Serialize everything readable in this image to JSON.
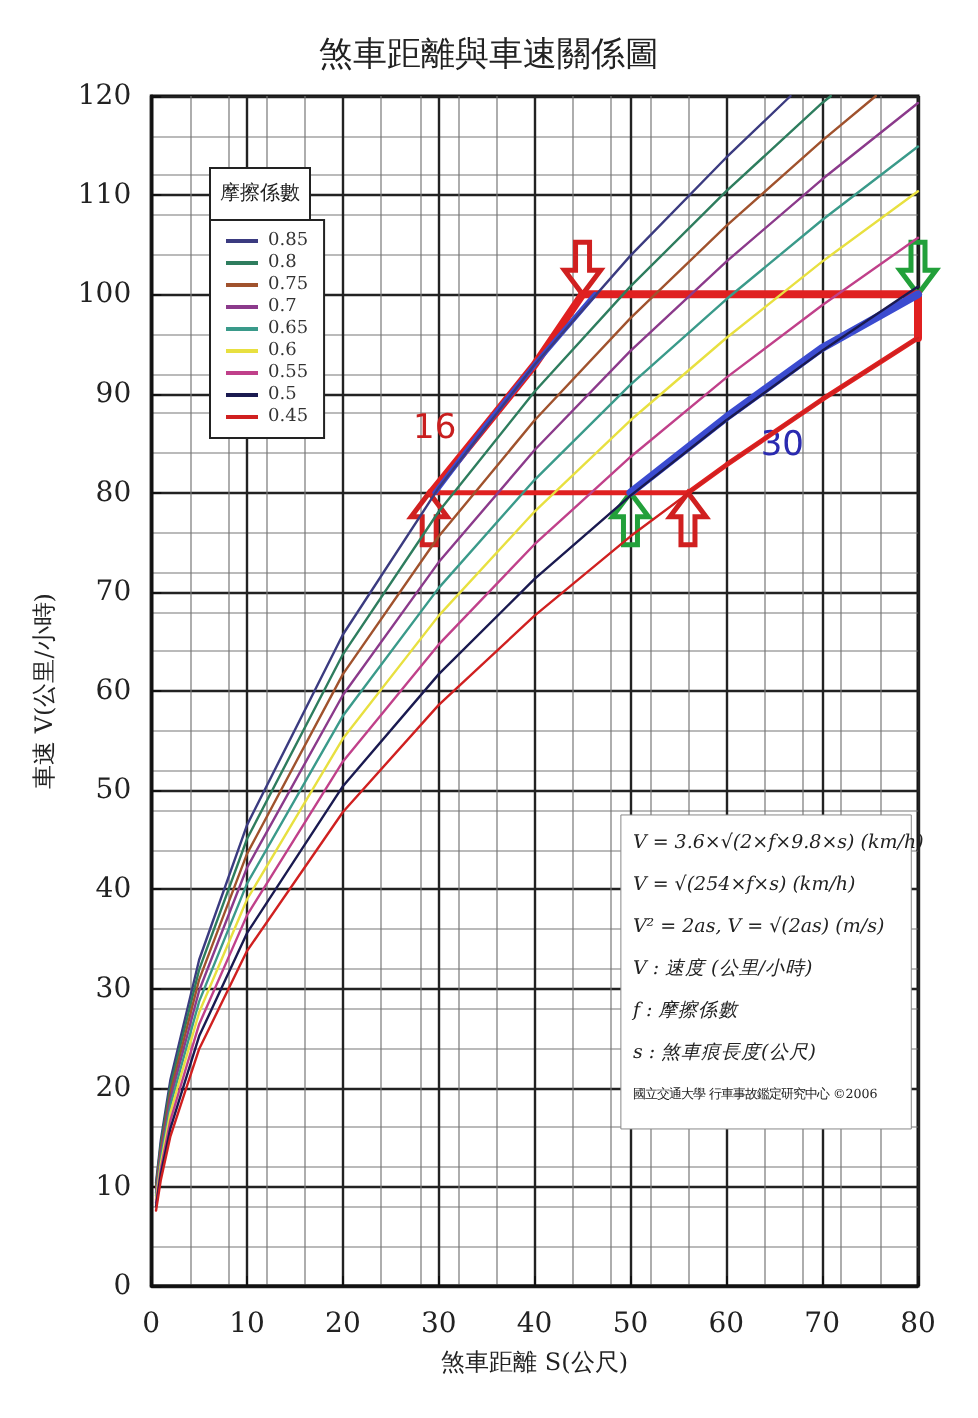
{
  "chart_data": {
    "type": "line",
    "title": "煞車距離與車速關係圖",
    "xlabel": "煞車距離 S(公尺)",
    "ylabel": "車速 V(公里/小時)",
    "legend_title": "摩擦係數",
    "xlim": [
      0,
      80
    ],
    "xticks": [
      0,
      10,
      20,
      30,
      40,
      50,
      60,
      70,
      80
    ],
    "ylim": [
      0,
      120
    ],
    "yticks": [
      0,
      10,
      20,
      30,
      40,
      50,
      60,
      70,
      80,
      90,
      100,
      110,
      120
    ],
    "grid": true,
    "legend": "top left",
    "marker": "none",
    "line_style": "solid",
    "series": [
      {
        "name": "0.85",
        "color": "#3b3b80",
        "x": [
          0.5,
          1,
          2,
          5,
          10,
          20,
          30,
          40,
          50,
          60,
          66.7
        ],
        "values": [
          10.4,
          14.7,
          20.8,
          32.9,
          46.5,
          65.7,
          80.5,
          92.9,
          103.9,
          113.8,
          120
        ]
      },
      {
        "name": "0.8",
        "color": "#2e7d5e",
        "x": [
          0.5,
          1,
          2,
          5,
          10,
          20,
          30,
          40,
          50,
          60,
          70,
          70.9
        ],
        "values": [
          10.1,
          14.3,
          20.2,
          31.9,
          45.1,
          63.7,
          78.1,
          90.2,
          100.8,
          110.4,
          119.3,
          120
        ]
      },
      {
        "name": "0.75",
        "color": "#a0522d",
        "x": [
          0.5,
          1,
          2,
          5,
          10,
          20,
          30,
          40,
          50,
          60,
          70,
          75.6
        ],
        "values": [
          9.8,
          13.8,
          19.5,
          30.9,
          43.6,
          61.7,
          75.6,
          87.3,
          97.6,
          106.9,
          115.5,
          120
        ]
      },
      {
        "name": "0.7",
        "color": "#8b3a8b",
        "x": [
          0.5,
          1,
          2,
          5,
          10,
          20,
          30,
          40,
          50,
          60,
          70,
          80
        ],
        "values": [
          9.4,
          13.3,
          18.9,
          29.8,
          42.2,
          59.6,
          73.0,
          84.3,
          94.3,
          103.3,
          111.6,
          119.3
        ]
      },
      {
        "name": "0.65",
        "color": "#3a9a8a",
        "x": [
          0.5,
          1,
          2,
          5,
          10,
          20,
          30,
          40,
          50,
          60,
          70,
          80
        ],
        "values": [
          9.1,
          12.8,
          18.2,
          28.7,
          40.6,
          57.5,
          70.4,
          81.3,
          90.9,
          99.5,
          107.5,
          114.9
        ]
      },
      {
        "name": "0.6",
        "color": "#e8e040",
        "x": [
          0.5,
          1,
          2,
          5,
          10,
          20,
          30,
          40,
          50,
          60,
          70,
          80
        ],
        "values": [
          8.7,
          12.3,
          17.5,
          27.6,
          39.0,
          55.2,
          67.6,
          78.1,
          87.3,
          95.6,
          103.3,
          110.4
        ]
      },
      {
        "name": "0.55",
        "color": "#c0408a",
        "x": [
          0.5,
          1,
          2,
          5,
          10,
          20,
          30,
          40,
          50,
          60,
          70,
          80
        ],
        "values": [
          8.4,
          11.8,
          16.7,
          26.4,
          37.4,
          52.9,
          64.7,
          74.8,
          83.6,
          91.6,
          98.9,
          105.7
        ]
      },
      {
        "name": "0.5",
        "color": "#1a1a50",
        "x": [
          0.5,
          1,
          2,
          5,
          10,
          20,
          30,
          40,
          50,
          60,
          70,
          80
        ],
        "values": [
          8.0,
          11.3,
          15.9,
          25.2,
          35.6,
          50.4,
          61.7,
          71.3,
          79.7,
          87.3,
          94.3,
          100.8
        ]
      },
      {
        "name": "0.45",
        "color": "#d02020",
        "x": [
          0.5,
          1,
          2,
          5,
          10,
          20,
          30,
          40,
          50,
          60,
          70,
          80
        ],
        "values": [
          7.6,
          10.7,
          15.1,
          23.9,
          33.8,
          47.8,
          58.6,
          67.6,
          75.6,
          82.8,
          89.4,
          95.6
        ]
      },
      {
        "color": "#e02020",
        "x": [
          45,
          80
        ],
        "values": [
          100,
          100
        ]
      },
      {
        "color": "#e02020",
        "x": [
          29,
          56
        ],
        "values": [
          80,
          80
        ]
      },
      {
        "color": "#e02020",
        "x": [
          80,
          80
        ],
        "values": [
          95.6,
          100
        ]
      },
      {
        "color": "#e02020",
        "x": [
          56,
          60,
          70,
          80
        ],
        "values": [
          80,
          82.8,
          89.4,
          95.6
        ]
      },
      {
        "color": "#e02020",
        "x": [
          29.2,
          35,
          40,
          45
        ],
        "values": [
          80,
          86.9,
          92.9,
          100
        ]
      },
      {
        "color": "#3b4bd0",
        "x": [
          29.6,
          35,
          40,
          46.3
        ],
        "values": [
          80,
          86.9,
          92.9,
          100
        ]
      },
      {
        "color": "#3b4bd0",
        "x": [
          50,
          60,
          70,
          80
        ],
        "values": [
          80,
          87.6,
          94.6,
          100
        ]
      }
    ],
    "annotations": [
      {
        "text": "16",
        "x": 35,
        "y": 86.9
      },
      {
        "text": "30",
        "x": 60,
        "y": 87.6
      },
      "V = 3.6×√(2×f×9.8×s) (km/h)",
      "V = √(254×f×s) (km/h)",
      "V² = 2as, V = √(2as) (m/s)",
      "V : 速度 (公里/小時)",
      "f : 摩擦係數",
      "s : 煞車痕長度(公尺)",
      "國立交通大學 行車事故鑑定研究中心 ©2006"
    ]
  }
}
